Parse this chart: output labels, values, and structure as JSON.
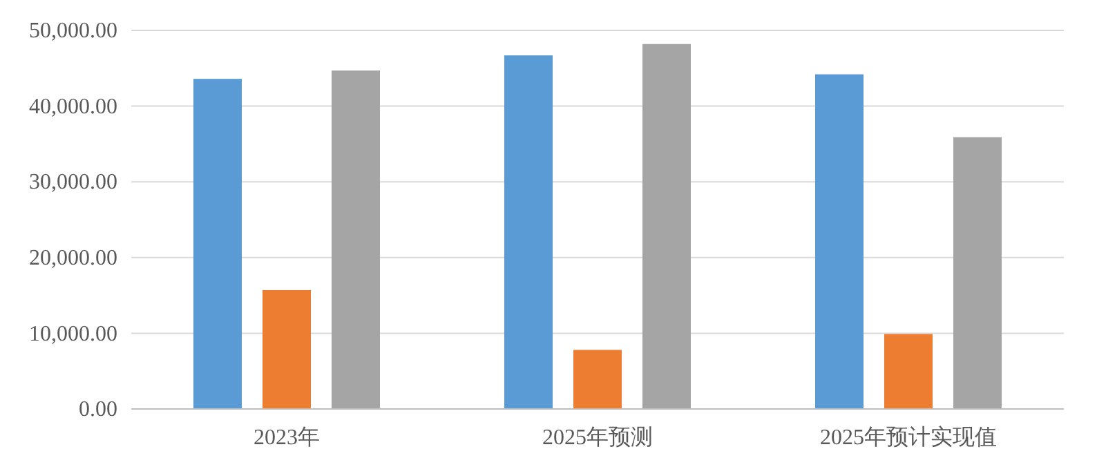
{
  "chart_data": {
    "type": "bar",
    "categories": [
      "2023年",
      "2025年预测",
      "2025年预计实现值"
    ],
    "series": [
      {
        "color": "#5b9bd5",
        "values": [
          43600,
          46700,
          44200
        ]
      },
      {
        "color": "#ed7d31",
        "values": [
          15700,
          7800,
          9900
        ]
      },
      {
        "color": "#a5a5a5",
        "values": [
          44700,
          48200,
          35900
        ]
      }
    ],
    "ylim": [
      0,
      50000
    ],
    "yticks": [
      {
        "value": 0,
        "label": "0.00"
      },
      {
        "value": 10000,
        "label": "10,000.00"
      },
      {
        "value": 20000,
        "label": "20,000.00"
      },
      {
        "value": 30000,
        "label": "30,000.00"
      },
      {
        "value": 40000,
        "label": "40,000.00"
      },
      {
        "value": 50000,
        "label": "50,000.00"
      }
    ],
    "grid": "y"
  }
}
